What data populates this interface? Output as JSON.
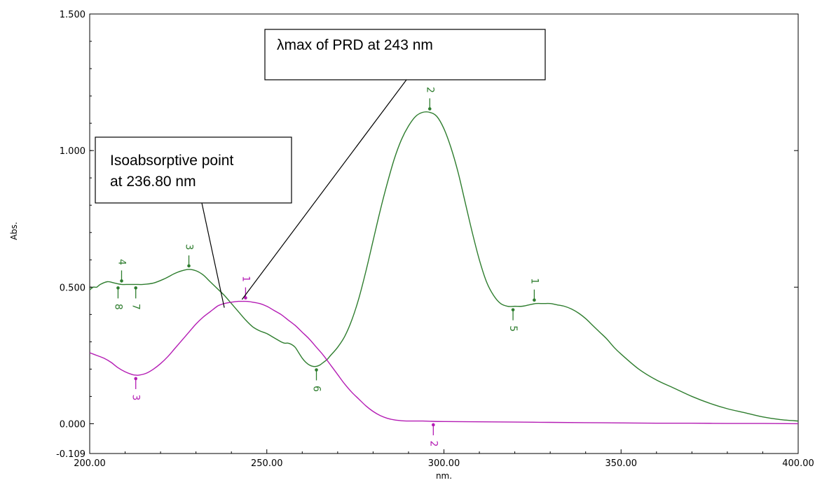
{
  "chart_data": {
    "type": "line",
    "xlabel": "nm.",
    "ylabel": "Abs.",
    "xlim": [
      200,
      400
    ],
    "ylim": [
      -0.109,
      1.5
    ],
    "x_ticks": [
      200,
      250,
      300,
      350,
      400
    ],
    "x_tick_labels": [
      "200.00",
      "250.00",
      "300.00",
      "350.00",
      "400.00"
    ],
    "y_ticks": [
      1.5,
      1.0,
      0.5,
      0.0,
      -0.109
    ],
    "y_tick_labels": [
      "1.500",
      "1.000",
      "0.500",
      "0.000",
      "-0.109"
    ],
    "grid": false,
    "legend": "none",
    "series": [
      {
        "color": "#2e7d2e",
        "x": [
          200,
          201,
          202,
          203,
          205,
          207,
          209,
          211,
          213,
          215,
          218,
          221,
          224,
          226,
          228,
          230,
          232,
          234,
          236,
          238,
          240,
          242,
          244,
          246,
          248,
          250,
          252,
          254,
          255,
          256,
          257,
          258,
          259,
          260,
          261,
          262,
          263,
          264,
          265,
          266,
          267,
          268,
          270,
          272,
          274,
          276,
          278,
          280,
          282,
          284,
          286,
          288,
          290,
          292,
          294,
          296,
          298,
          300,
          302,
          304,
          306,
          308,
          310,
          312,
          314,
          316,
          318,
          320,
          322,
          324,
          326,
          328,
          330,
          332,
          334,
          336,
          338,
          340,
          342,
          344,
          346,
          348,
          350,
          355,
          360,
          365,
          370,
          375,
          380,
          385,
          390,
          395,
          400
        ],
        "values": [
          0.49,
          0.5,
          0.5,
          0.51,
          0.52,
          0.515,
          0.51,
          0.51,
          0.51,
          0.51,
          0.515,
          0.53,
          0.55,
          0.56,
          0.565,
          0.56,
          0.545,
          0.52,
          0.495,
          0.47,
          0.44,
          0.41,
          0.38,
          0.355,
          0.34,
          0.33,
          0.315,
          0.3,
          0.295,
          0.295,
          0.29,
          0.28,
          0.26,
          0.24,
          0.225,
          0.215,
          0.21,
          0.21,
          0.215,
          0.225,
          0.235,
          0.25,
          0.28,
          0.32,
          0.38,
          0.46,
          0.56,
          0.67,
          0.78,
          0.88,
          0.97,
          1.04,
          1.09,
          1.125,
          1.14,
          1.14,
          1.125,
          1.08,
          1.01,
          0.92,
          0.81,
          0.7,
          0.6,
          0.52,
          0.47,
          0.44,
          0.43,
          0.43,
          0.43,
          0.435,
          0.44,
          0.44,
          0.44,
          0.435,
          0.43,
          0.42,
          0.405,
          0.385,
          0.36,
          0.335,
          0.31,
          0.28,
          0.255,
          0.2,
          0.16,
          0.13,
          0.1,
          0.075,
          0.055,
          0.04,
          0.025,
          0.015,
          0.01
        ]
      },
      {
        "color": "#b41cb4",
        "x": [
          200,
          202,
          204,
          206,
          208,
          210,
          212,
          213,
          214,
          216,
          218,
          220,
          222,
          224,
          226,
          228,
          230,
          232,
          234,
          236,
          236.8,
          238,
          240,
          242,
          243,
          244,
          245,
          246,
          248,
          250,
          252,
          254,
          256,
          258,
          260,
          262,
          264,
          266,
          268,
          270,
          272,
          274,
          276,
          278,
          280,
          282,
          284,
          286,
          288,
          290,
          292,
          294,
          296,
          300,
          310,
          320,
          330,
          340,
          350,
          360,
          370,
          380,
          390,
          400
        ],
        "values": [
          0.26,
          0.25,
          0.24,
          0.225,
          0.205,
          0.19,
          0.18,
          0.178,
          0.178,
          0.185,
          0.2,
          0.22,
          0.245,
          0.275,
          0.305,
          0.335,
          0.365,
          0.39,
          0.41,
          0.43,
          0.435,
          0.44,
          0.445,
          0.448,
          0.448,
          0.448,
          0.447,
          0.445,
          0.44,
          0.43,
          0.415,
          0.4,
          0.38,
          0.36,
          0.335,
          0.31,
          0.28,
          0.25,
          0.215,
          0.18,
          0.145,
          0.115,
          0.09,
          0.065,
          0.045,
          0.03,
          0.02,
          0.014,
          0.011,
          0.01,
          0.01,
          0.01,
          0.009,
          0.008,
          0.007,
          0.006,
          0.005,
          0.004,
          0.003,
          0.002,
          0.002,
          0.001,
          0.001,
          0.0
        ]
      }
    ],
    "peak_markers": [
      {
        "label": "4",
        "x": 209,
        "y": 0.51,
        "side": "above",
        "color": "#2e7d2e"
      },
      {
        "label": "3",
        "x": 228,
        "y": 0.565,
        "side": "above",
        "color": "#2e7d2e"
      },
      {
        "label": "8",
        "x": 208,
        "y": 0.51,
        "side": "below",
        "color": "#2e7d2e"
      },
      {
        "label": "7",
        "x": 213,
        "y": 0.51,
        "side": "below",
        "color": "#2e7d2e"
      },
      {
        "label": "6",
        "x": 264,
        "y": 0.21,
        "side": "below",
        "color": "#2e7d2e"
      },
      {
        "label": "2",
        "x": 296,
        "y": 1.14,
        "side": "above",
        "color": "#2e7d2e"
      },
      {
        "label": "1",
        "x": 325.5,
        "y": 0.44,
        "side": "above",
        "color": "#2e7d2e"
      },
      {
        "label": "5",
        "x": 319.5,
        "y": 0.43,
        "side": "below",
        "color": "#2e7d2e"
      },
      {
        "label": "1",
        "x": 244,
        "y": 0.448,
        "side": "above",
        "color": "#b41cb4"
      },
      {
        "label": "3",
        "x": 213,
        "y": 0.178,
        "side": "below",
        "color": "#b41cb4"
      },
      {
        "label": "2",
        "x": 297,
        "y": 0.009,
        "side": "below",
        "color": "#b41cb4"
      }
    ],
    "annotations": [
      {
        "lines": [
          "λmax of PRD at 243 nm"
        ],
        "pointer_x": 243,
        "pointer_y": 0.455
      },
      {
        "lines": [
          "Isoabsorptive point",
          "at 236.80 nm"
        ],
        "pointer_x": 238,
        "pointer_y": 0.425
      }
    ]
  }
}
